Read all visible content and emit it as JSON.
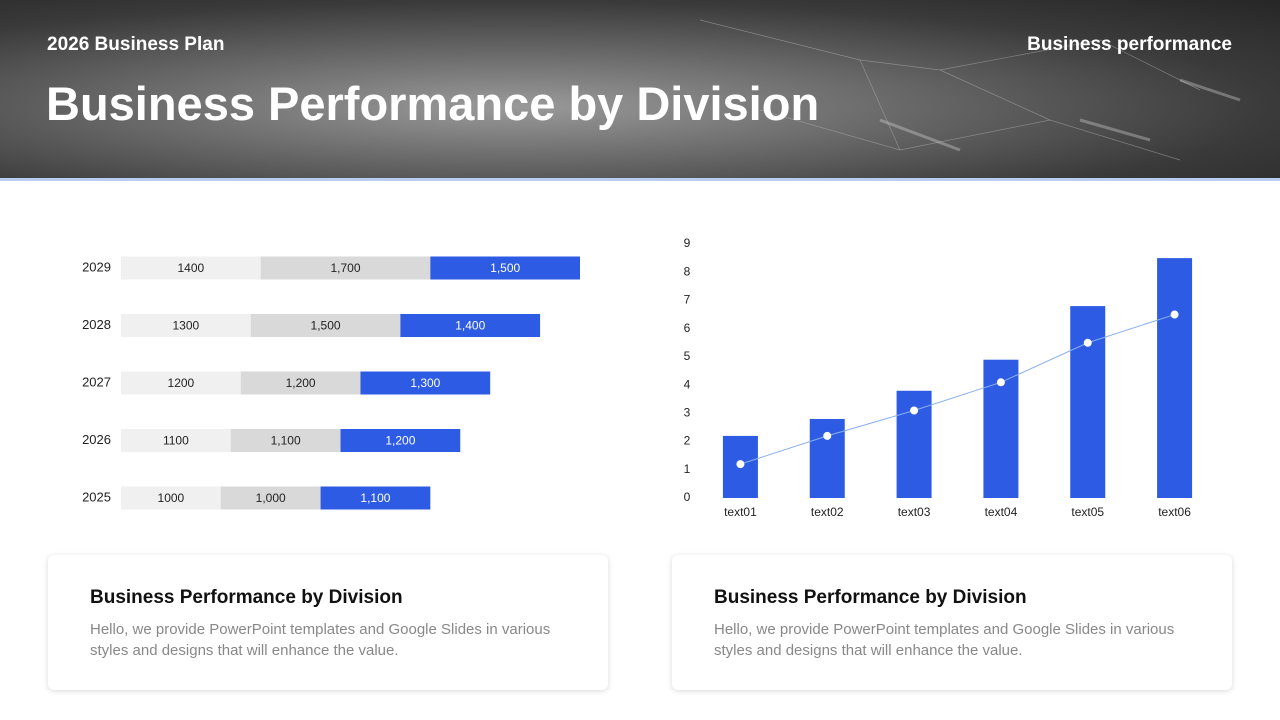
{
  "header": {
    "subtitle": "2026 Business Plan",
    "section": "Business performance",
    "title": "Business Performance by Division"
  },
  "chart_data": [
    {
      "type": "hbar-stacked",
      "categories": [
        "2029",
        "2028",
        "2027",
        "2026",
        "2025"
      ],
      "series": [
        {
          "color": "#f0f0f0",
          "values": [
            1400,
            1300,
            1200,
            1100,
            1000
          ]
        },
        {
          "color": "#d9d9d9",
          "values": [
            1700,
            1500,
            1200,
            1100,
            1000
          ],
          "value_labels": [
            "1,700",
            "1,500",
            "1,200",
            "1,100",
            "1,000"
          ]
        },
        {
          "color": "#2d5be3",
          "values": [
            1500,
            1400,
            1300,
            1200,
            1100
          ],
          "value_labels": [
            "1,500",
            "1,400",
            "1,300",
            "1,200",
            "1,100"
          ]
        }
      ]
    },
    {
      "type": "combo",
      "categories": [
        "text01",
        "text02",
        "text03",
        "text04",
        "text05",
        "text06"
      ],
      "series": [
        {
          "type": "bar",
          "color": "#2d5be3",
          "values": [
            2.2,
            2.8,
            3.8,
            4.9,
            6.8,
            8.5
          ]
        },
        {
          "type": "line",
          "color": "#8ab0f0",
          "values": [
            1.2,
            2.2,
            3.1,
            4.1,
            5.5,
            6.5
          ]
        }
      ],
      "ylim": [
        0,
        9
      ],
      "yticks": [
        0,
        1,
        2,
        3,
        4,
        5,
        6,
        7,
        8,
        9
      ]
    }
  ],
  "cards": [
    {
      "title": "Business Performance by Division",
      "body": "Hello, we provide PowerPoint templates and Google Slides in various styles and designs that will enhance the value."
    },
    {
      "title": "Business Performance by Division",
      "body": "Hello, we provide PowerPoint templates and Google Slides in various styles and designs that will enhance the value."
    }
  ]
}
